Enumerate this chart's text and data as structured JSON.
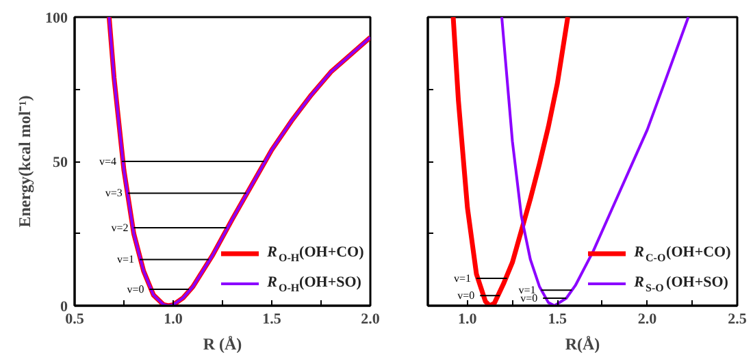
{
  "chart_data": [
    {
      "type": "line",
      "xlabel": "R (Å)",
      "ylabel": "Energy(kcal mol⁻¹)",
      "xlim": [
        0.5,
        2.0
      ],
      "ylim": [
        0,
        100
      ],
      "xticks": [
        0.5,
        {
          "value": 0.75,
          "label": null
        },
        {
          "value": 1.0,
          "label": "1.0"
        },
        {
          "value": 1.25,
          "label": null
        },
        1.5,
        {
          "value": 1.75,
          "label": null
        },
        {
          "value": 2.0,
          "label": "2.0"
        }
      ],
      "yticks": [
        0,
        {
          "value": 25,
          "label": null
        },
        50,
        {
          "value": 75,
          "label": null
        },
        100
      ],
      "legend": "bottom right",
      "grid": false,
      "series": [
        {
          "name": "R$_{O-H}$(OH+CO)",
          "color": "#ff0000",
          "x": [
            0.675,
            0.7,
            0.75,
            0.8,
            0.85,
            0.9,
            0.95,
            0.975,
            1.0,
            1.05,
            1.1,
            1.2,
            1.3,
            1.4,
            1.5,
            1.6,
            1.7,
            1.8,
            1.9,
            2.0
          ],
          "values": [
            100,
            79,
            47,
            25,
            12,
            3.7,
            0.4,
            0,
            0.3,
            2.7,
            6.6,
            17.5,
            30,
            42,
            54,
            64,
            73,
            81,
            87,
            93
          ]
        },
        {
          "name": "R$_{O-H}$(OH+SO)",
          "color": "#8b00ff",
          "x": [
            0.675,
            0.7,
            0.75,
            0.8,
            0.85,
            0.9,
            0.95,
            0.975,
            1.0,
            1.05,
            1.1,
            1.2,
            1.3,
            1.4,
            1.5,
            1.6,
            1.7,
            1.8,
            1.9,
            2.0
          ],
          "values": [
            100,
            79,
            47,
            25,
            12,
            3.7,
            0.4,
            0,
            0.3,
            2.7,
            6.6,
            17.5,
            30,
            42,
            54,
            64,
            73,
            81,
            87,
            93
          ]
        },
        {
          "color": "#000000",
          "x": [
            0.88,
            1.08
          ],
          "values": [
            5.7,
            5.7
          ]
        },
        {
          "color": "#000000",
          "x": [
            0.83,
            1.18
          ],
          "values": [
            16,
            16
          ]
        },
        {
          "color": "#000000",
          "x": [
            0.8,
            1.27
          ],
          "values": [
            27,
            27
          ]
        },
        {
          "color": "#000000",
          "x": [
            0.77,
            1.37
          ],
          "values": [
            39,
            39
          ]
        },
        {
          "color": "#000000",
          "x": [
            0.74,
            1.46
          ],
          "values": [
            50,
            50
          ]
        }
      ],
      "annotations": [
        {
          "text": "v=0",
          "x": 0.88,
          "y": 5.7
        },
        {
          "text": "v=1",
          "x": 0.83,
          "y": 16
        },
        {
          "text": "v=2",
          "x": 0.8,
          "y": 27
        },
        {
          "text": "v=3",
          "x": 0.77,
          "y": 39
        },
        {
          "text": "v=4",
          "x": 0.74,
          "y": 50
        }
      ]
    },
    {
      "type": "line",
      "xlabel": "R(Å)",
      "xlim": [
        0.78,
        2.5
      ],
      "ylim": [
        0,
        100
      ],
      "tick_labels": "x",
      "xticks": [
        {
          "value": 1.0,
          "label": "1.0"
        },
        {
          "value": 1.25,
          "label": null
        },
        1.5,
        {
          "value": 1.75,
          "label": null
        },
        {
          "value": 2.0,
          "label": "2.0"
        },
        {
          "value": 2.25,
          "label": null
        },
        2.5
      ],
      "yticks": [
        0,
        25,
        50,
        75,
        100
      ],
      "legend": "bottom right",
      "grid": false,
      "series": [
        {
          "name": "R$_{C-O}$(OH+CO)",
          "color": "#ff0000",
          "x": [
            0.921,
            0.95,
            1.0,
            1.05,
            1.1,
            1.124,
            1.15,
            1.2,
            1.25,
            1.3,
            1.35,
            1.4,
            1.45,
            1.5,
            1.558
          ],
          "values": [
            100,
            71,
            34,
            11,
            1.5,
            0,
            0.9,
            7.5,
            15,
            26,
            37,
            49,
            62,
            77,
            100
          ]
        },
        {
          "name": "R$_{S-O}$(OH+SO)",
          "color": "#8b00ff",
          "x": [
            1.191,
            1.25,
            1.3,
            1.35,
            1.4,
            1.45,
            1.484,
            1.55,
            1.6,
            1.7,
            1.8,
            1.9,
            2.0,
            2.1,
            2.228
          ],
          "values": [
            100,
            57,
            31,
            16,
            6.7,
            1.1,
            0,
            2.6,
            7,
            19,
            33,
            47,
            61,
            78,
            100
          ]
        },
        {
          "color": "#000000",
          "x": [
            1.07,
            1.18
          ],
          "values": [
            3.5,
            3.5
          ]
        },
        {
          "color": "#000000",
          "x": [
            1.05,
            1.22
          ],
          "values": [
            9.5,
            9.5
          ]
        },
        {
          "color": "#000000",
          "x": [
            1.42,
            1.55
          ],
          "values": [
            2.6,
            2.6
          ]
        },
        {
          "color": "#000000",
          "x": [
            1.41,
            1.58
          ],
          "values": [
            5.4,
            5.4
          ]
        }
      ],
      "annotations": [
        {
          "text": "v=0",
          "x": 1.07,
          "y": 3.5
        },
        {
          "text": "v=1",
          "x": 1.05,
          "y": 9.5
        },
        {
          "text": "v=0",
          "x": 1.42,
          "y": 2.6
        },
        {
          "text": "v=1",
          "x": 1.41,
          "y": 5.4
        }
      ]
    }
  ]
}
